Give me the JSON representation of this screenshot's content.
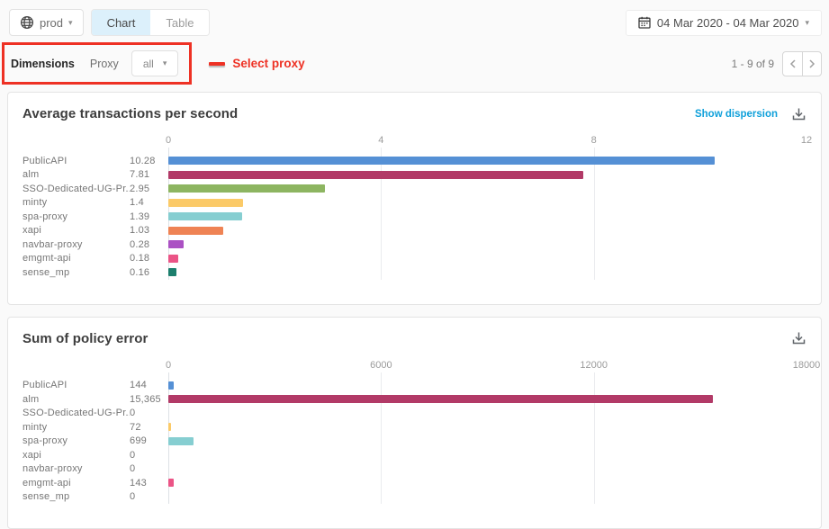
{
  "header": {
    "environment": {
      "label": "prod"
    },
    "tabs": {
      "chart": "Chart",
      "table": "Table"
    },
    "date_range": {
      "label": "04 Mar 2020 - 04 Mar 2020"
    }
  },
  "filters": {
    "dimensions_label": "Dimensions",
    "dimension_name": "Proxy",
    "proxy_select": {
      "value": "all"
    },
    "annotation": {
      "text": "Select proxy"
    }
  },
  "pagination": {
    "range_text": "1 - 9 of 9"
  },
  "icons": {
    "environment": "globe-icon",
    "date": "calendar-icon",
    "download": "download-icon",
    "previous": "chevron-left-icon",
    "next": "chevron-right-icon",
    "dropdown": "caret-down-icon"
  },
  "colors": {
    "annotation_red": "#ee3124",
    "link_blue": "#0fa0da",
    "tab_active_bg": "#dcf0fb",
    "card_border": "#e4e4e4",
    "page_bg": "#fafafa"
  },
  "chart_data": [
    {
      "type": "bar",
      "orientation": "horizontal",
      "title": "Average transactions per second",
      "actions": {
        "show_dispersion": "Show dispersion"
      },
      "categories": [
        "PublicAPI",
        "alm",
        "SSO-Dedicated-UG-Pr...",
        "minty",
        "spa-proxy",
        "xapi",
        "navbar-proxy",
        "emgmt-api",
        "sense_mp"
      ],
      "values": [
        10.28,
        7.81,
        2.95,
        1.4,
        1.39,
        1.03,
        0.28,
        0.18,
        0.16
      ],
      "value_labels": [
        "10.28",
        "7.81",
        "2.95",
        "1.4",
        "1.39",
        "1.03",
        "0.28",
        "0.18",
        "0.16"
      ],
      "bar_colors": [
        "#5590d5",
        "#b23a67",
        "#8db561",
        "#fbca68",
        "#86ced1",
        "#ef8354",
        "#ab51c3",
        "#eb5486",
        "#1c7f6d"
      ],
      "ticks": [
        "0",
        "4",
        "8",
        "12"
      ],
      "xlim": [
        0,
        12
      ],
      "grid": true,
      "legend": false
    },
    {
      "type": "bar",
      "orientation": "horizontal",
      "title": "Sum of policy error",
      "categories": [
        "PublicAPI",
        "alm",
        "SSO-Dedicated-UG-Pr...",
        "minty",
        "spa-proxy",
        "xapi",
        "navbar-proxy",
        "emgmt-api",
        "sense_mp"
      ],
      "values": [
        144,
        15365,
        0,
        72,
        699,
        0,
        0,
        143,
        0
      ],
      "value_labels": [
        "144",
        "15,365",
        "0",
        "72",
        "699",
        "0",
        "0",
        "143",
        "0"
      ],
      "bar_colors": [
        "#5590d5",
        "#b23a67",
        "#8db561",
        "#fbca68",
        "#86ced1",
        "#ef8354",
        "#ab51c3",
        "#eb5486",
        "#1c7f6d"
      ],
      "ticks": [
        "0",
        "6000",
        "12000",
        "18000"
      ],
      "xlim": [
        0,
        18000
      ],
      "grid": true,
      "legend": false
    }
  ]
}
